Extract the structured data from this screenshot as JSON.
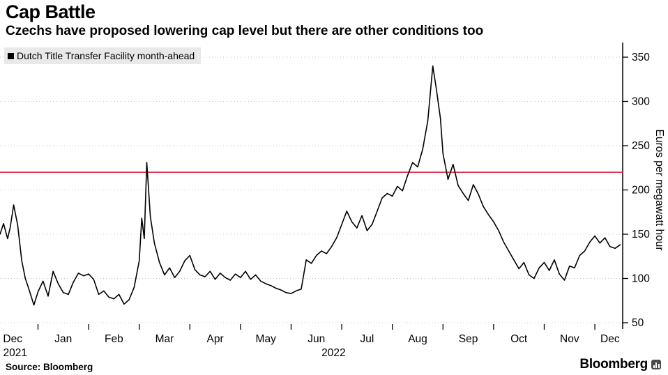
{
  "footer": {
    "source": "Source: Bloomberg",
    "brand": "Bloomberg"
  },
  "chart_data": {
    "type": "line",
    "title": "Cap Battle",
    "subtitle": "Czechs have proposed lowering cap level but there are other conditions too",
    "ylabel": "Euros per megawatt hour",
    "ylim": [
      50,
      350
    ],
    "yticks": [
      50,
      100,
      150,
      200,
      250,
      300,
      350
    ],
    "x_range": [
      0.25,
      12.55
    ],
    "month_ticks": [
      0,
      1,
      2,
      3,
      4,
      5,
      6,
      7,
      8,
      9,
      10,
      11,
      12
    ],
    "month_labels": [
      "Dec",
      "Jan",
      "Feb",
      "Mar",
      "Apr",
      "May",
      "Jun",
      "Jul",
      "Aug",
      "Sep",
      "Oct",
      "Nov",
      "Dec"
    ],
    "year_labels": [
      {
        "label": "2021",
        "x": 0.55
      },
      {
        "label": "2022",
        "x": 6.84
      }
    ],
    "grid": "dotted-horizontal",
    "grid_color": "#c9c9c9",
    "cap_line": {
      "value": 220,
      "color": "#e0344e"
    },
    "series": [
      {
        "name": "Dutch Title Transfer Facility month-ahead",
        "color": "#000000",
        "x": [
          0.25,
          0.32,
          0.4,
          0.45,
          0.52,
          0.6,
          0.68,
          0.75,
          0.82,
          0.92,
          1.0,
          1.1,
          1.2,
          1.3,
          1.4,
          1.5,
          1.6,
          1.7,
          1.8,
          1.9,
          2.0,
          2.1,
          2.2,
          2.3,
          2.4,
          2.5,
          2.6,
          2.7,
          2.8,
          2.9,
          3.0,
          3.05,
          3.1,
          3.15,
          3.22,
          3.3,
          3.4,
          3.5,
          3.6,
          3.7,
          3.8,
          3.9,
          4.0,
          4.1,
          4.2,
          4.3,
          4.4,
          4.5,
          4.6,
          4.7,
          4.8,
          4.9,
          5.0,
          5.1,
          5.2,
          5.3,
          5.4,
          5.5,
          5.6,
          5.7,
          5.8,
          5.9,
          6.0,
          6.1,
          6.2,
          6.3,
          6.4,
          6.5,
          6.6,
          6.7,
          6.8,
          6.9,
          7.0,
          7.1,
          7.2,
          7.3,
          7.4,
          7.5,
          7.6,
          7.7,
          7.8,
          7.9,
          8.0,
          8.1,
          8.2,
          8.3,
          8.4,
          8.5,
          8.6,
          8.7,
          8.8,
          8.87,
          8.95,
          9.0,
          9.1,
          9.2,
          9.3,
          9.4,
          9.5,
          9.6,
          9.7,
          9.8,
          9.9,
          10.0,
          10.1,
          10.2,
          10.3,
          10.4,
          10.5,
          10.6,
          10.7,
          10.8,
          10.9,
          11.0,
          11.1,
          11.2,
          11.3,
          11.4,
          11.5,
          11.6,
          11.7,
          11.8,
          11.9,
          12.0,
          12.1,
          12.2,
          12.3,
          12.4,
          12.5
        ],
        "values": [
          150,
          162,
          145,
          157,
          183,
          160,
          120,
          100,
          88,
          70,
          85,
          97,
          80,
          108,
          94,
          84,
          82,
          96,
          106,
          103,
          105,
          99,
          82,
          86,
          79,
          77,
          82,
          71,
          76,
          90,
          120,
          168,
          145,
          231,
          170,
          140,
          118,
          104,
          112,
          101,
          108,
          120,
          126,
          110,
          104,
          102,
          108,
          99,
          106,
          101,
          98,
          105,
          101,
          108,
          99,
          104,
          97,
          94,
          92,
          89,
          87,
          84,
          83,
          86,
          88,
          121,
          117,
          126,
          131,
          128,
          136,
          146,
          161,
          176,
          164,
          157,
          171,
          154,
          161,
          176,
          191,
          196,
          193,
          204,
          199,
          216,
          231,
          226,
          246,
          278,
          340,
          314,
          281,
          241,
          212,
          229,
          205,
          196,
          188,
          206,
          195,
          181,
          172,
          164,
          154,
          141,
          131,
          121,
          111,
          118,
          104,
          100,
          112,
          118,
          109,
          121,
          105,
          98,
          114,
          112,
          126,
          131,
          141,
          148,
          140,
          146,
          136,
          134,
          138
        ]
      }
    ]
  }
}
